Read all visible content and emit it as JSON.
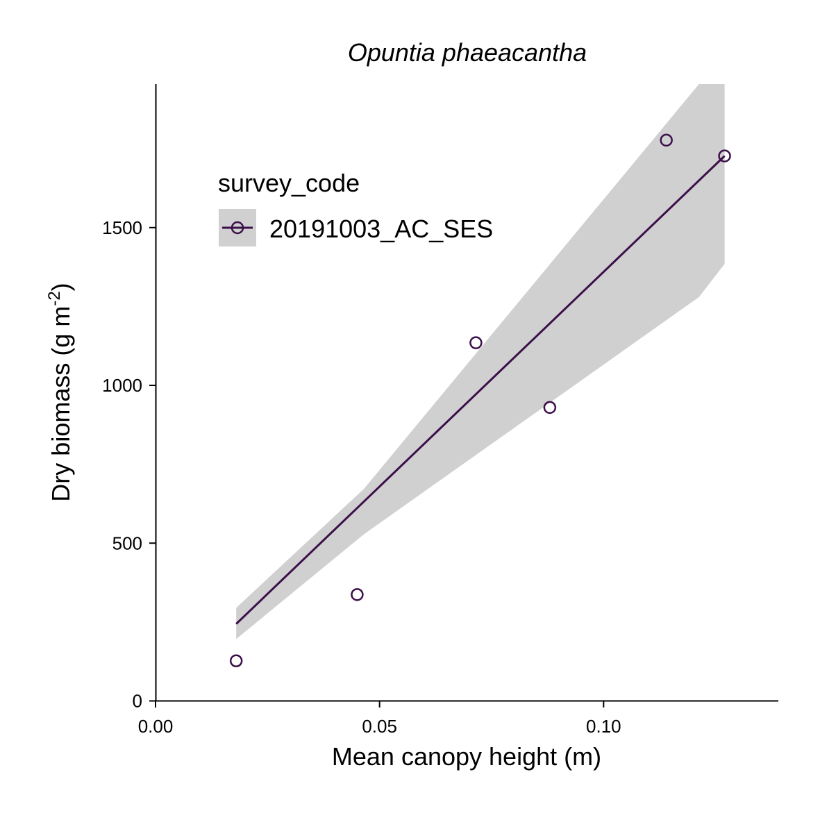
{
  "chart_data": {
    "type": "scatter",
    "title": "Opuntia phaeacantha",
    "xlabel": "Mean canopy height (m)",
    "ylabel": "Dry biomass (g m",
    "ylabel_superscript": "-2",
    "ylabel_suffix": ")",
    "xlim": [
      0,
      0.139
    ],
    "ylim": [
      0,
      1955
    ],
    "x_ticks": [
      0.0,
      0.05,
      0.1
    ],
    "x_tick_labels": [
      "0.00",
      "0.05",
      "0.10"
    ],
    "y_ticks": [
      0,
      500,
      1000,
      1500
    ],
    "y_tick_labels": [
      "0",
      "500",
      "1000",
      "1500"
    ],
    "grid": false,
    "legend": {
      "title": "survey_code",
      "placement": "top-left",
      "entries": [
        "20191003_AC_SES"
      ]
    },
    "series": [
      {
        "name": "20191003_AC_SES",
        "color": "#3b0f4a",
        "points": [
          {
            "x": 0.018,
            "y": 127
          },
          {
            "x": 0.045,
            "y": 337
          },
          {
            "x": 0.0715,
            "y": 1135
          },
          {
            "x": 0.088,
            "y": 930
          },
          {
            "x": 0.114,
            "y": 1777
          },
          {
            "x": 0.127,
            "y": 1727
          }
        ],
        "fit_line": {
          "x": [
            0.018,
            0.127
          ],
          "y": [
            244,
            1727
          ]
        },
        "confidence_band": {
          "x": [
            0.018,
            0.0465,
            0.1213,
            0.127
          ],
          "upper": [
            295,
            672,
            1955,
            1955
          ],
          "lower": [
            196,
            528,
            1280,
            1385
          ]
        },
        "band_color": "#d0d0d0"
      }
    ]
  }
}
